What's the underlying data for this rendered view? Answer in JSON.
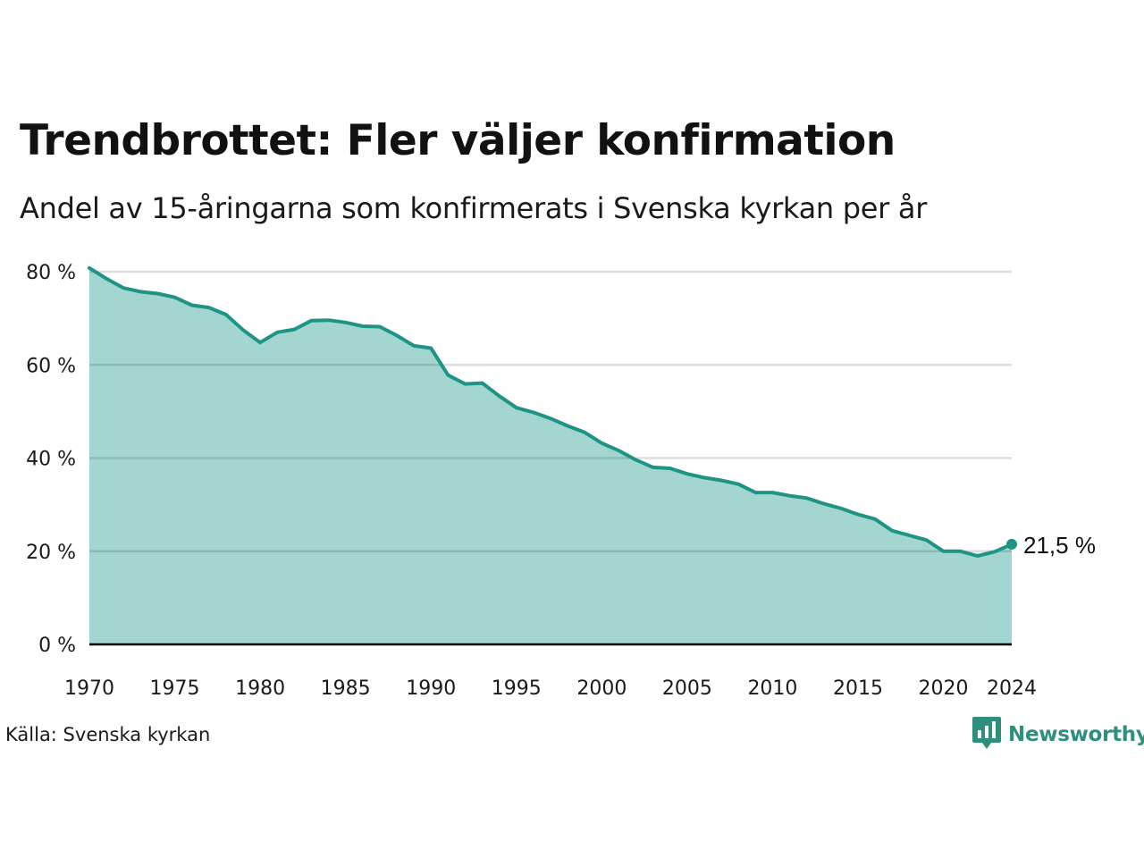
{
  "header": {
    "title": "Trendbrottet: Fler väljer konfirmation",
    "subtitle": "Andel av 15-åringarna som konfirmerats i Svenska kyrkan per år"
  },
  "footer": {
    "source": "Källa: Svenska kyrkan",
    "brand": "Newsworthy",
    "brand_icon": "bar-chart-bubble-icon"
  },
  "colors": {
    "line": "#1d9485",
    "fill": "#a3d6d0",
    "grid": "#dcdcdc",
    "axis": "#000000",
    "brand": "#2e8f7e"
  },
  "chart_data": {
    "type": "area",
    "x": [
      1970,
      1971,
      1972,
      1973,
      1974,
      1975,
      1976,
      1977,
      1978,
      1979,
      1980,
      1981,
      1982,
      1983,
      1984,
      1985,
      1986,
      1987,
      1988,
      1989,
      1990,
      1991,
      1992,
      1993,
      1994,
      1995,
      1996,
      1997,
      1998,
      1999,
      2000,
      2001,
      2002,
      2003,
      2004,
      2005,
      2006,
      2007,
      2008,
      2009,
      2010,
      2011,
      2012,
      2013,
      2014,
      2015,
      2016,
      2017,
      2018,
      2019,
      2020,
      2021,
      2022,
      2023,
      2024
    ],
    "values": [
      80.8,
      78.5,
      76.5,
      75.7,
      75.3,
      74.5,
      72.8,
      72.3,
      70.8,
      67.5,
      64.8,
      67.0,
      67.6,
      69.5,
      69.6,
      69.1,
      68.3,
      68.2,
      66.3,
      64.1,
      63.6,
      57.8,
      55.9,
      56.1,
      53.3,
      50.8,
      49.8,
      48.5,
      46.9,
      45.5,
      43.2,
      41.6,
      39.6,
      38.0,
      37.8,
      36.6,
      35.8,
      35.2,
      34.4,
      32.6,
      32.6,
      31.9,
      31.4,
      30.2,
      29.2,
      27.9,
      26.9,
      24.4,
      23.4,
      22.4,
      20.0,
      20.0,
      19.0,
      19.9,
      21.5
    ],
    "x_ticks": [
      "1970",
      "1975",
      "1980",
      "1985",
      "1990",
      "1995",
      "2000",
      "2005",
      "2010",
      "2015",
      "2020",
      "2024"
    ],
    "y_ticks": [
      "0 %",
      "20 %",
      "40 %",
      "60 %",
      "80 %"
    ],
    "ylim": [
      0,
      80
    ],
    "xlim": [
      1970,
      2024
    ],
    "grid": true,
    "last_label": "21,5  %"
  }
}
